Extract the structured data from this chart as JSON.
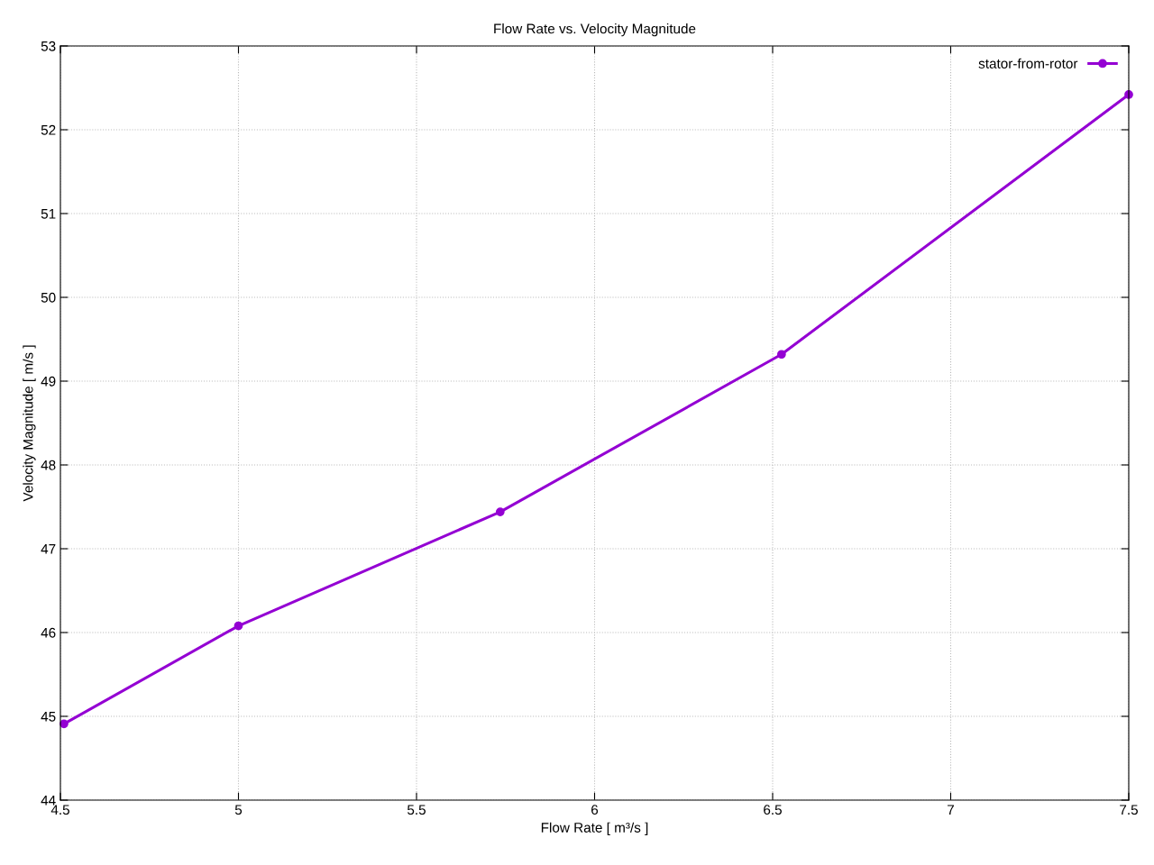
{
  "chart_data": {
    "type": "line",
    "title": "Flow Rate vs. Velocity Magnitude",
    "xlabel": "Flow Rate [ m³/s ]",
    "ylabel": "Velocity Magnitude [ m/s ]",
    "x": [
      4.51,
      5.0,
      5.735,
      6.525,
      7.5
    ],
    "series": [
      {
        "name": "stator-from-rotor",
        "color": "#9400d3",
        "values": [
          44.91,
          46.08,
          47.44,
          49.32,
          52.42
        ]
      }
    ],
    "xlim": [
      4.5,
      7.5
    ],
    "xticks": [
      4.5,
      5,
      5.5,
      6,
      6.5,
      7,
      7.5
    ],
    "ylim": [
      44,
      53
    ],
    "yticks": [
      44,
      45,
      46,
      47,
      48,
      49,
      50,
      51,
      52,
      53
    ],
    "grid": true,
    "legend": "top right",
    "marker": "circle",
    "line_style": "solid"
  }
}
